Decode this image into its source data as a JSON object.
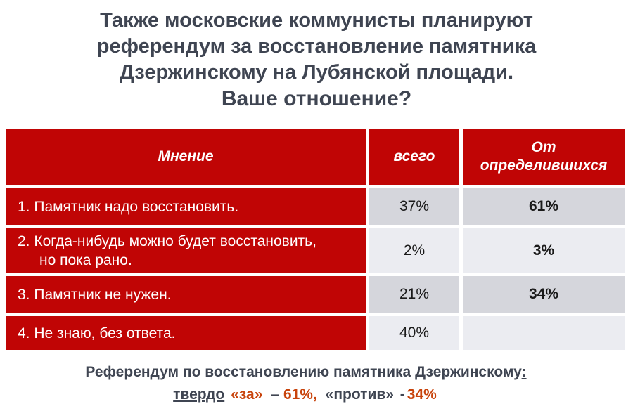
{
  "colors": {
    "table_red": "#C00505",
    "row_gray_dark": "#D5D6DC",
    "row_gray_light": "#EBECF1",
    "title_gray": "#3F4552",
    "accent_orange_red": "#C8430B"
  },
  "title": {
    "line1": "Также московские коммунисты планируют",
    "line2": "референдум за восстановление памятника",
    "line3": "Дзержинскому на Лубянской площади.",
    "line4": "Ваше отношение?"
  },
  "table": {
    "columns": {
      "opinion": "Мнение",
      "total": "всего",
      "decided": "От определившихся"
    },
    "rows": [
      {
        "label": "1. Памятник надо восстановить.",
        "total": "37%",
        "decided": "61%"
      },
      {
        "label": "2. Когда-нибудь можно будет восстановить,",
        "label2": "но пока рано.",
        "total": "2%",
        "decided": "3%"
      },
      {
        "label": "3. Памятник не нужен.",
        "total": "21%",
        "decided": "34%"
      },
      {
        "label": "4. Не знаю, без ответа.",
        "total": "40%",
        "decided": ""
      }
    ]
  },
  "footer": {
    "line1_text": "Референдум по восстановлению памятника Дзержинскому",
    "line1_colon": ":",
    "line2": {
      "word1": "твердо",
      "za": "«за»",
      "dash1": "–",
      "val1": "61%,",
      "protiv": "«против»",
      "dash2": "-",
      "val2": "34%"
    }
  },
  "chart_data": {
    "type": "table",
    "title": "Также московские коммунисты планируют референдум за восстановление памятника Дзержинскому на Лубянской площади. Ваше отношение?",
    "columns": [
      "Мнение",
      "всего",
      "От определившихся"
    ],
    "rows": [
      [
        "1. Памятник надо восстановить.",
        "37%",
        "61%"
      ],
      [
        "2. Когда-нибудь можно будет восстановить, но пока рано.",
        "2%",
        "3%"
      ],
      [
        "3. Памятник не нужен.",
        "21%",
        "34%"
      ],
      [
        "4. Не знаю, без ответа.",
        "40%",
        ""
      ]
    ],
    "values_total_pct": [
      37,
      2,
      21,
      40
    ],
    "values_decided_pct": [
      61,
      3,
      34,
      null
    ],
    "note": "Референдум по восстановлению памятника Дзержинскому: твердо «за» – 61%, «против» - 34%"
  }
}
